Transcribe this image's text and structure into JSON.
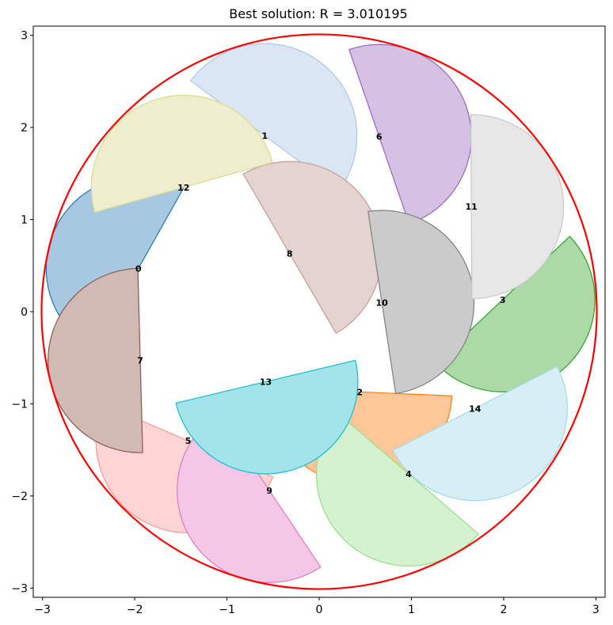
{
  "chart_data": {
    "type": "scatter",
    "title": "Best solution: R = 3.010195",
    "xlabel": "",
    "ylabel": "",
    "xlim": [
      -3.1,
      3.1
    ],
    "ylim": [
      -3.1,
      3.1
    ],
    "xticks": [
      -3,
      -2,
      -1,
      0,
      1,
      2,
      3
    ],
    "yticks": [
      -3,
      -2,
      -1,
      0,
      1,
      2,
      3
    ],
    "grid": false,
    "container_circle": {
      "cx": 0,
      "cy": 0,
      "r": 3.010195,
      "color": "#ff0000"
    },
    "semicircle_radius": 1.0,
    "pieces": [
      {
        "label": "0",
        "cx": -1.96,
        "cy": 0.47,
        "angle_deg": 150.7,
        "fill": "#a6c8e0",
        "stroke": "#1f77b4"
      },
      {
        "label": "1",
        "cx": -0.59,
        "cy": 1.91,
        "angle_deg": 53.4,
        "fill": "#dae6f4",
        "stroke": "#aec7e8"
      },
      {
        "label": "2",
        "cx": 0.44,
        "cy": -0.87,
        "angle_deg": 267.5,
        "fill": "#ffc797",
        "stroke": "#ff7f0e"
      },
      {
        "label": "3",
        "cx": 1.99,
        "cy": 0.13,
        "angle_deg": 313.4,
        "fill": "#abdaa6",
        "stroke": "#2ca02c"
      },
      {
        "label": "4",
        "cx": 0.97,
        "cy": -1.76,
        "angle_deg": 229.3,
        "fill": "#d4f1d0",
        "stroke": "#98df8a"
      },
      {
        "label": "5",
        "cx": -1.42,
        "cy": -1.4,
        "angle_deg": 246.8,
        "fill": "#ffd4d5",
        "stroke": "#ff9896"
      },
      {
        "label": "6",
        "cx": 0.65,
        "cy": 1.9,
        "angle_deg": 19.0,
        "fill": "#d5c1e4",
        "stroke": "#9467bd"
      },
      {
        "label": "7",
        "cx": -1.94,
        "cy": -0.53,
        "angle_deg": 181.5,
        "fill": "#d1b9b4",
        "stroke": "#8c564b"
      },
      {
        "label": "8",
        "cx": -0.32,
        "cy": 0.63,
        "angle_deg": 30.2,
        "fill": "#e4d3d1",
        "stroke": "#c49c94"
      },
      {
        "label": "9",
        "cx": -0.54,
        "cy": -1.94,
        "angle_deg": 213.8,
        "fill": "#f4c7e6",
        "stroke": "#e377c2"
      },
      {
        "label": "10",
        "cx": 0.68,
        "cy": 0.1,
        "angle_deg": 8.6,
        "fill": "#cbcbcb",
        "stroke": "#7f7f7f"
      },
      {
        "label": "11",
        "cx": 1.65,
        "cy": 1.14,
        "angle_deg": 0.3,
        "fill": "#e7e7e7",
        "stroke": "#c7c7c7"
      },
      {
        "label": "12",
        "cx": -1.47,
        "cy": 1.35,
        "angle_deg": 105.7,
        "fill": "#eeeece",
        "stroke": "#dbdb8d"
      },
      {
        "label": "13",
        "cx": -0.58,
        "cy": -0.76,
        "angle_deg": 283.4,
        "fill": "#a3e4eb",
        "stroke": "#17becf"
      },
      {
        "label": "14",
        "cx": 1.69,
        "cy": -1.05,
        "angle_deg": 297.1,
        "fill": "#d7eff4",
        "stroke": "#9edae5"
      }
    ]
  }
}
